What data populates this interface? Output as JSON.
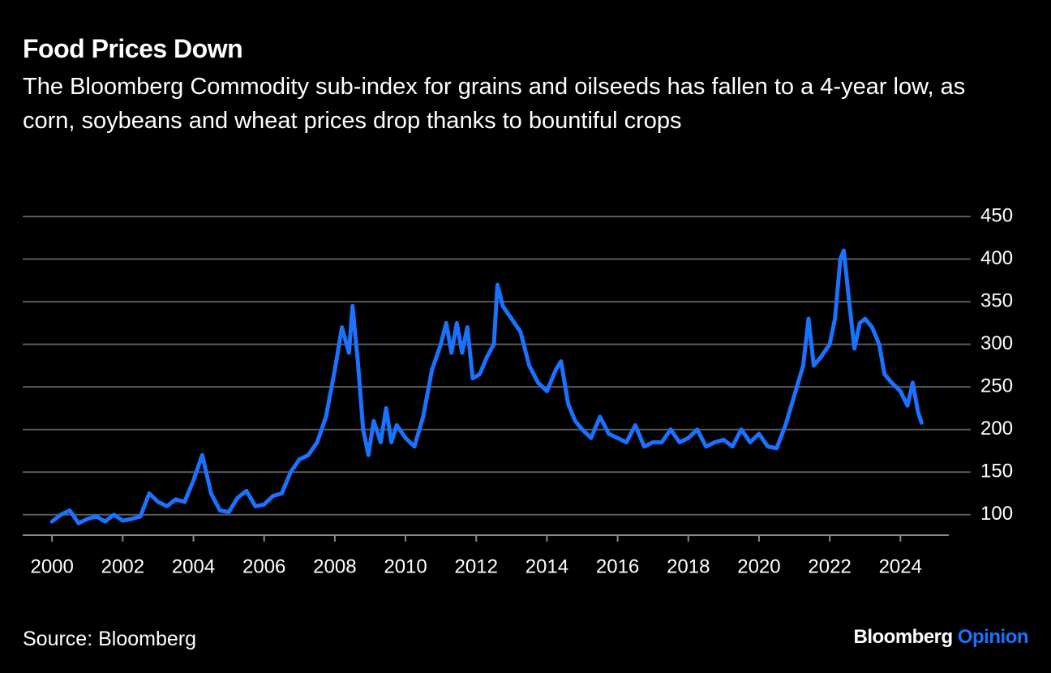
{
  "chart_data": {
    "type": "line",
    "title": "Food Prices Down",
    "subtitle": "The Bloomberg Commodity sub-index for grains and oilseeds has fallen to a 4-year low, as corn, soybeans and wheat prices drop thanks to bountiful crops",
    "source": "Source: Bloomberg",
    "brand": "Bloomberg",
    "brand_suffix": "Opinion",
    "color": "#1a72ff",
    "grid": true,
    "x": [
      2000.0,
      2000.25,
      2000.5,
      2000.75,
      2001.0,
      2001.25,
      2001.5,
      2001.75,
      2002.0,
      2002.25,
      2002.5,
      2002.75,
      2003.0,
      2003.25,
      2003.5,
      2003.75,
      2004.0,
      2004.25,
      2004.5,
      2004.75,
      2005.0,
      2005.25,
      2005.5,
      2005.75,
      2006.0,
      2006.25,
      2006.5,
      2006.75,
      2007.0,
      2007.25,
      2007.5,
      2007.75,
      2008.0,
      2008.2,
      2008.4,
      2008.5,
      2008.65,
      2008.8,
      2008.95,
      2009.1,
      2009.3,
      2009.45,
      2009.6,
      2009.75,
      2010.0,
      2010.25,
      2010.5,
      2010.75,
      2011.0,
      2011.15,
      2011.3,
      2011.45,
      2011.6,
      2011.75,
      2011.9,
      2012.1,
      2012.3,
      2012.5,
      2012.6,
      2012.75,
      2013.0,
      2013.25,
      2013.5,
      2013.75,
      2014.0,
      2014.25,
      2014.4,
      2014.6,
      2014.8,
      2015.0,
      2015.25,
      2015.5,
      2015.75,
      2016.0,
      2016.25,
      2016.5,
      2016.75,
      2017.0,
      2017.25,
      2017.5,
      2017.75,
      2018.0,
      2018.25,
      2018.5,
      2018.75,
      2019.0,
      2019.25,
      2019.5,
      2019.75,
      2020.0,
      2020.25,
      2020.5,
      2020.75,
      2021.0,
      2021.25,
      2021.4,
      2021.55,
      2021.75,
      2022.0,
      2022.15,
      2022.3,
      2022.4,
      2022.55,
      2022.7,
      2022.85,
      2023.0,
      2023.2,
      2023.4,
      2023.55,
      2023.75,
      2024.0,
      2024.2,
      2024.35,
      2024.5,
      2024.6
    ],
    "values": [
      92,
      100,
      105,
      90,
      95,
      98,
      92,
      100,
      93,
      95,
      98,
      125,
      115,
      110,
      118,
      115,
      140,
      170,
      125,
      105,
      103,
      120,
      128,
      110,
      112,
      122,
      125,
      150,
      165,
      170,
      185,
      215,
      270,
      320,
      290,
      345,
      280,
      200,
      170,
      210,
      185,
      225,
      185,
      205,
      190,
      180,
      215,
      270,
      300,
      325,
      290,
      325,
      290,
      320,
      260,
      265,
      285,
      300,
      370,
      345,
      330,
      315,
      275,
      255,
      245,
      270,
      280,
      230,
      210,
      200,
      190,
      215,
      195,
      190,
      185,
      205,
      180,
      185,
      185,
      200,
      185,
      190,
      200,
      180,
      185,
      188,
      180,
      200,
      185,
      195,
      180,
      178,
      205,
      240,
      275,
      330,
      275,
      285,
      300,
      330,
      400,
      410,
      350,
      295,
      325,
      330,
      320,
      300,
      265,
      255,
      245,
      228,
      255,
      220,
      208
    ],
    "xlim": [
      1999.17,
      2025.37
    ],
    "xticks": [
      2000,
      2002,
      2004,
      2006,
      2008,
      2010,
      2012,
      2014,
      2016,
      2018,
      2020,
      2022,
      2024
    ],
    "ylim": [
      76,
      450
    ],
    "yticks": [
      100,
      150,
      200,
      250,
      300,
      350,
      400,
      450
    ]
  }
}
